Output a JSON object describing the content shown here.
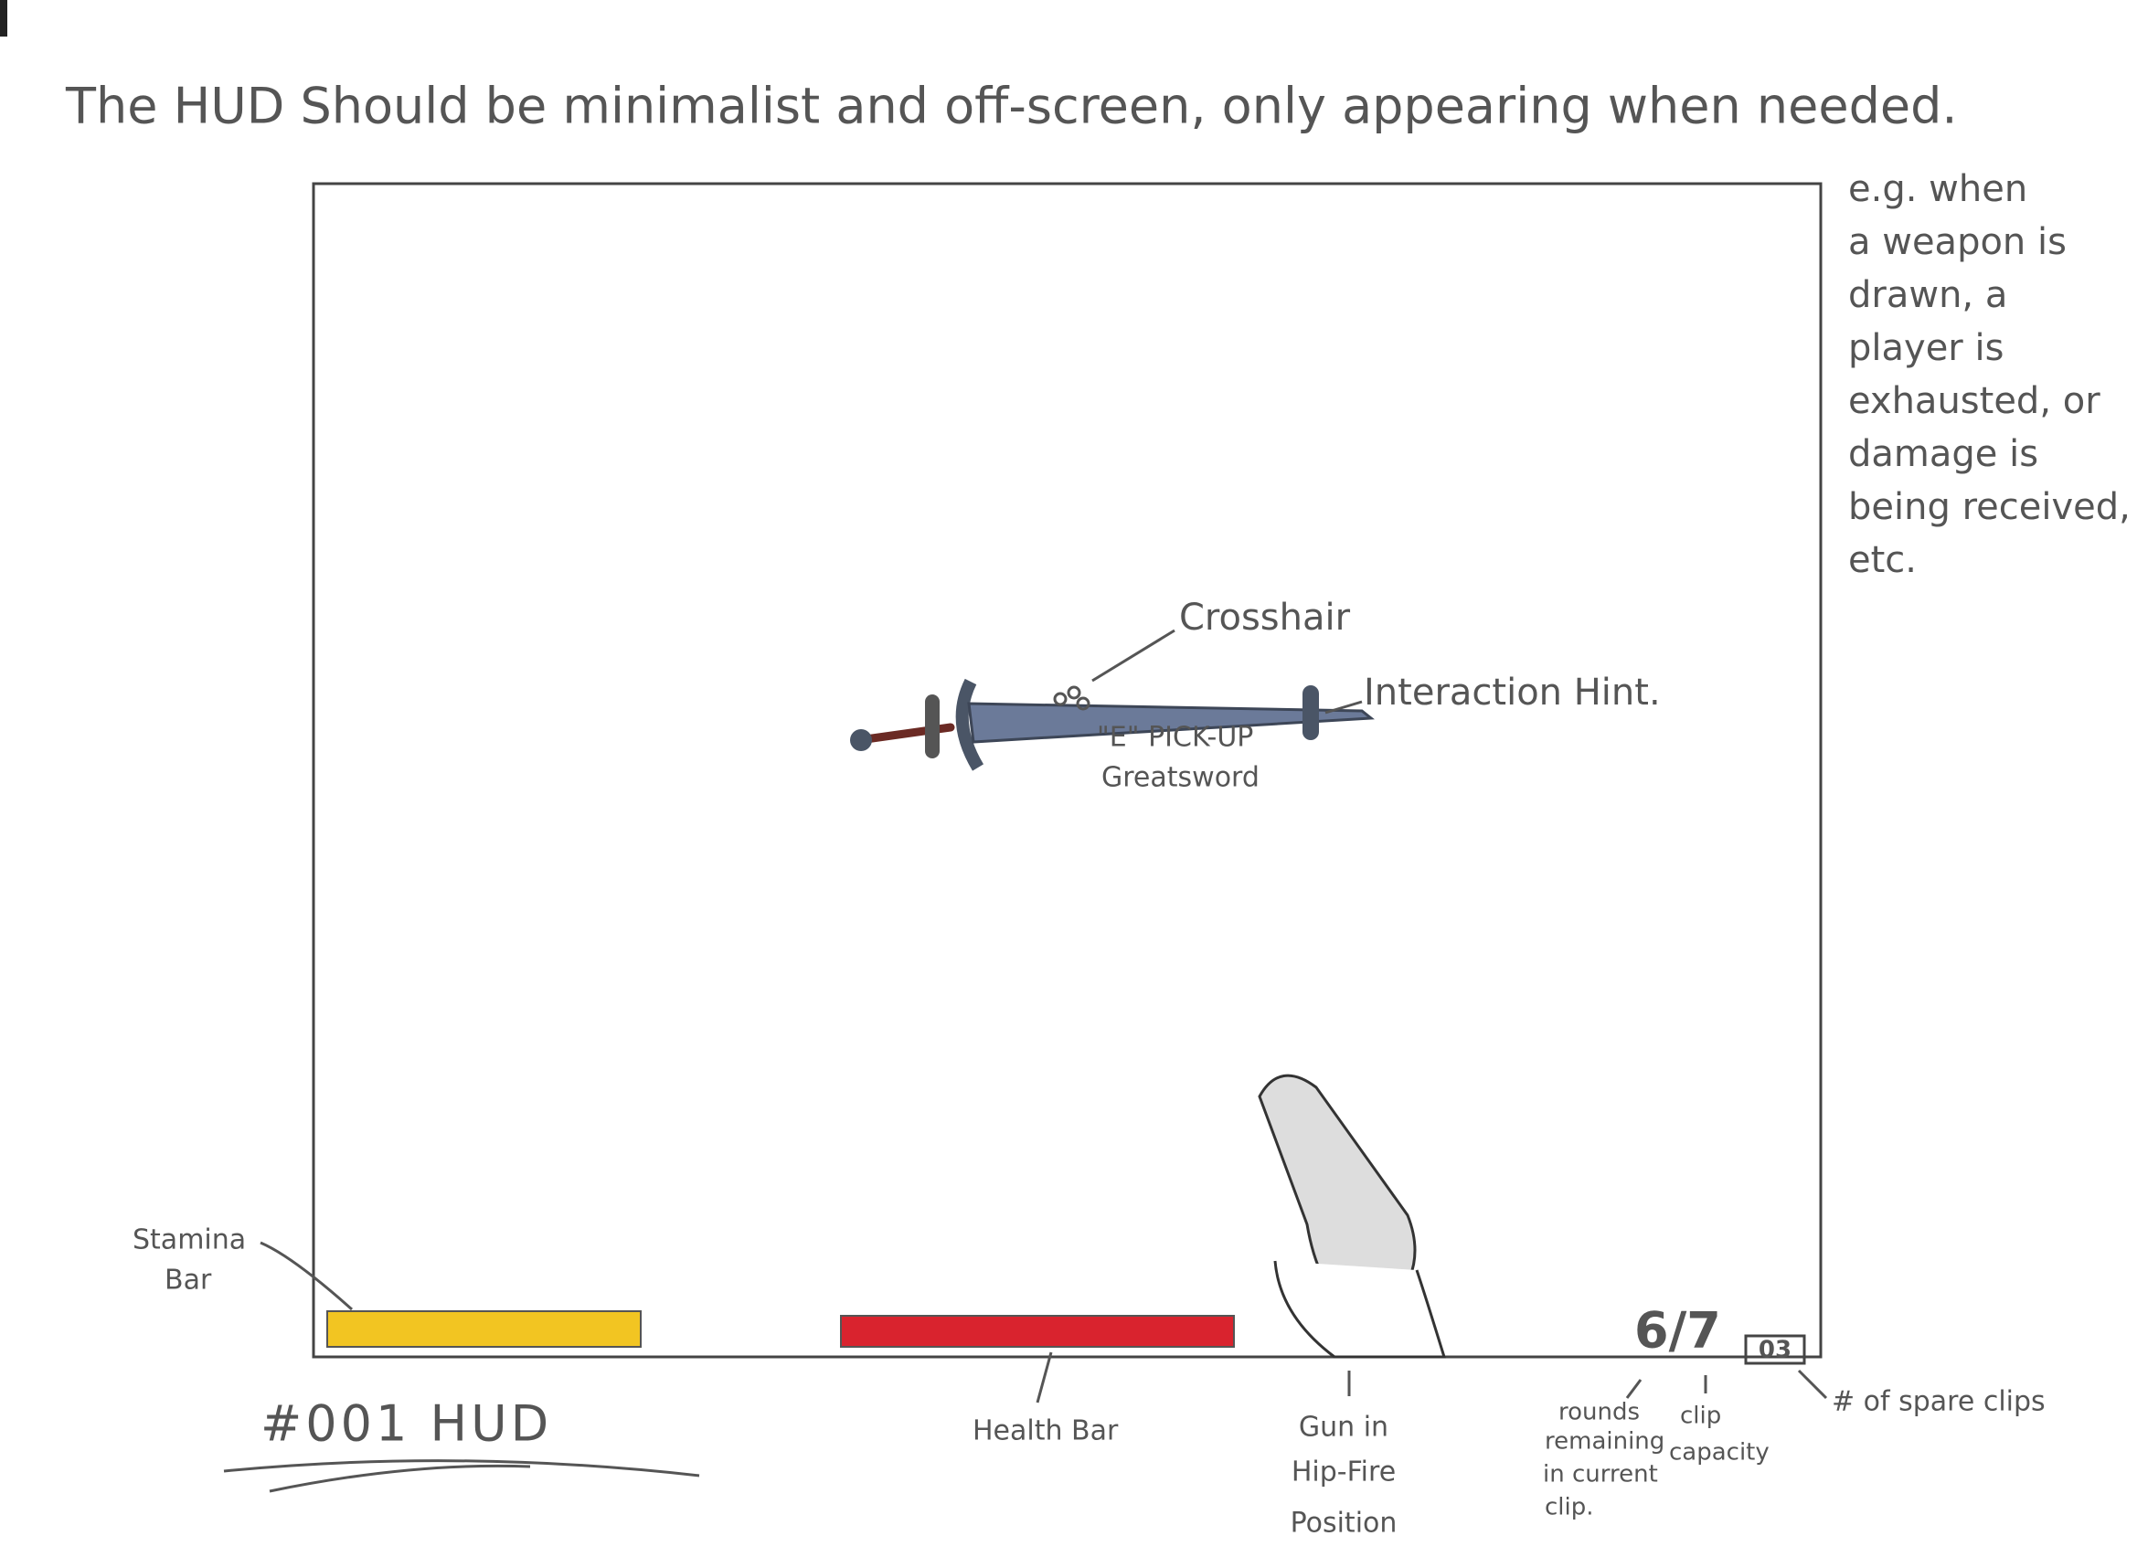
{
  "title": "The HUD Should be minimalist and off-screen, only appearing when needed.",
  "side_note": [
    "e.g. when",
    "a weapon is",
    "drawn, a",
    "player is",
    "exhausted, or",
    "damage is",
    "being received,",
    "etc."
  ],
  "screen": {
    "crosshair_label": "Crosshair",
    "interaction_hint_label": "Interaction Hint.",
    "interaction_hint": [
      "\"E\" PICK-UP",
      "Greatsword"
    ],
    "ammo_display": "6/7",
    "spare_clips_display": "03"
  },
  "annotations": {
    "stamina_bar": [
      "Stamina",
      "Bar"
    ],
    "health_bar": "Health Bar",
    "gun": [
      "Gun in",
      "Hip-Fire",
      "Position"
    ],
    "rounds": [
      "rounds",
      "remaining",
      "in current",
      "clip."
    ],
    "clip_capacity": [
      "clip",
      "capacity"
    ],
    "spare_clips": "# of spare clips"
  },
  "sheet_label": "#001   HUD"
}
